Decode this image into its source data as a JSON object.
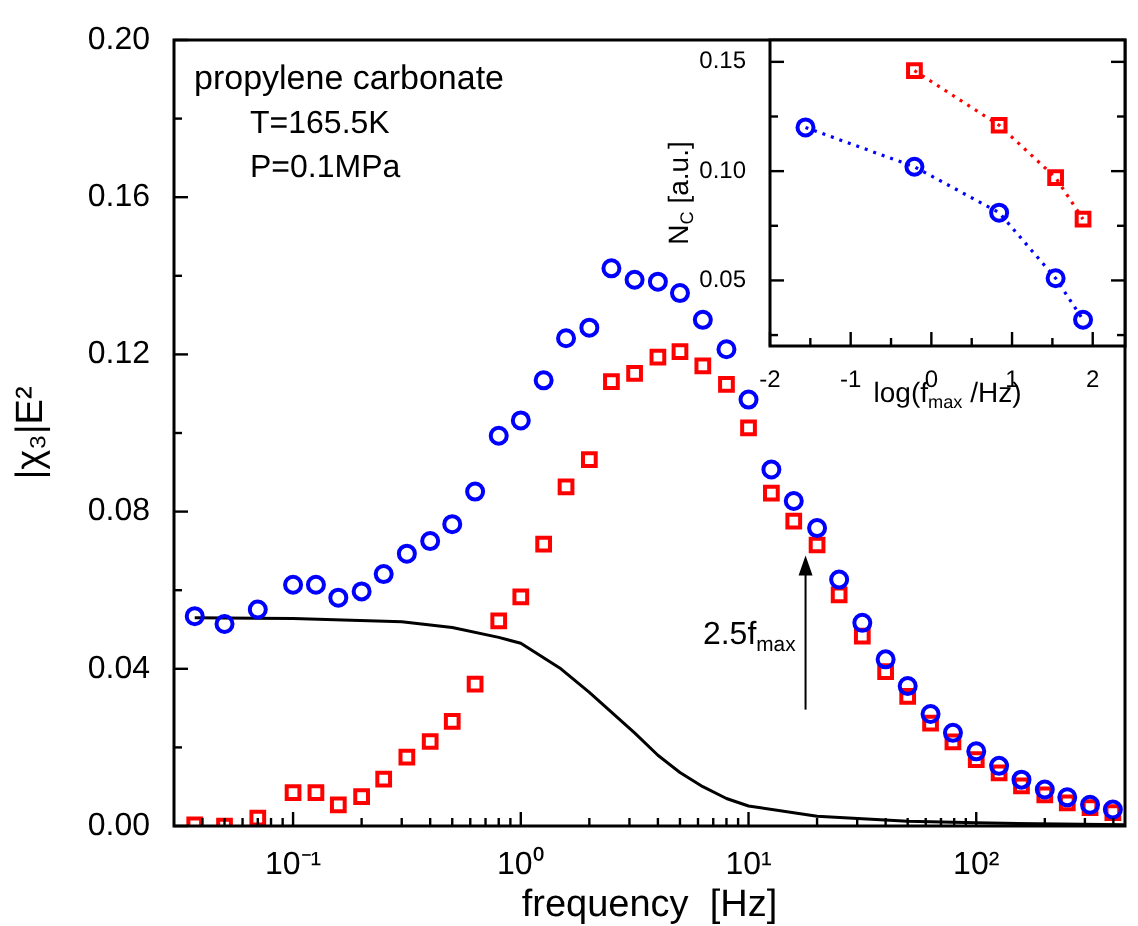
{
  "chart_data": [
    {
      "type": "scatter",
      "xlabel": "frequency  [Hz]",
      "ylabel": "|χ₃|E²",
      "log": "x",
      "grid": false,
      "legend": false,
      "xlim": [
        0.03,
        450
      ],
      "ylim": [
        0,
        0.2
      ],
      "xticks": [
        {
          "value": 0.04,
          "label": null
        },
        {
          "value": 0.05,
          "label": null
        },
        {
          "value": 0.06,
          "label": null
        },
        {
          "value": 0.07,
          "label": null
        },
        {
          "value": 0.08,
          "label": null
        },
        {
          "value": 0.09,
          "label": null
        },
        {
          "value": 0.1,
          "label": "10⁻¹"
        },
        {
          "value": 0.2,
          "label": null
        },
        {
          "value": 0.3,
          "label": null
        },
        {
          "value": 0.4,
          "label": null
        },
        {
          "value": 0.5,
          "label": null
        },
        {
          "value": 0.6,
          "label": null
        },
        {
          "value": 0.7,
          "label": null
        },
        {
          "value": 0.8,
          "label": null
        },
        {
          "value": 0.9,
          "label": null
        },
        {
          "value": 1,
          "label": "10⁰"
        },
        {
          "value": 2,
          "label": null
        },
        {
          "value": 3,
          "label": null
        },
        {
          "value": 4,
          "label": null
        },
        {
          "value": 5,
          "label": null
        },
        {
          "value": 6,
          "label": null
        },
        {
          "value": 7,
          "label": null
        },
        {
          "value": 8,
          "label": null
        },
        {
          "value": 9,
          "label": null
        },
        {
          "value": 10,
          "label": "10¹"
        },
        {
          "value": 20,
          "label": null
        },
        {
          "value": 30,
          "label": null
        },
        {
          "value": 40,
          "label": null
        },
        {
          "value": 50,
          "label": null
        },
        {
          "value": 60,
          "label": null
        },
        {
          "value": 70,
          "label": null
        },
        {
          "value": 80,
          "label": null
        },
        {
          "value": 90,
          "label": null
        },
        {
          "value": 100,
          "label": "10²"
        },
        {
          "value": 200,
          "label": null
        },
        {
          "value": 300,
          "label": null
        },
        {
          "value": 400,
          "label": null
        }
      ],
      "yticks": [
        {
          "value": 0,
          "label": "0.00"
        },
        {
          "value": 0.02,
          "label": null
        },
        {
          "value": 0.04,
          "label": "0.04"
        },
        {
          "value": 0.06,
          "label": null
        },
        {
          "value": 0.08,
          "label": "0.08"
        },
        {
          "value": 0.1,
          "label": null
        },
        {
          "value": 0.12,
          "label": "0.12"
        },
        {
          "value": 0.14,
          "label": null
        },
        {
          "value": 0.16,
          "label": "0.16"
        },
        {
          "value": 0.18,
          "label": null
        },
        {
          "value": 0.2,
          "label": "0.20"
        }
      ],
      "series": [
        {
          "type": "scatter",
          "marker": "circle",
          "color": "#0000ff",
          "x": [
            0.037,
            0.05,
            0.07,
            0.1,
            0.126,
            0.158,
            0.2,
            0.25,
            0.316,
            0.4,
            0.5,
            0.63,
            0.8,
            1,
            1.26,
            1.58,
            2,
            2.5,
            3.16,
            4,
            5,
            6.3,
            8,
            10,
            12.6,
            15.8,
            20,
            25,
            31.6,
            40,
            50,
            63,
            79,
            100,
            126,
            158,
            200,
            251,
            316,
            398
          ],
          "values": [
            0.0534,
            0.0514,
            0.0551,
            0.0614,
            0.0614,
            0.0581,
            0.0597,
            0.0641,
            0.0693,
            0.0725,
            0.0768,
            0.0851,
            0.0993,
            0.1032,
            0.1134,
            0.1241,
            0.1268,
            0.1419,
            0.139,
            0.1385,
            0.1356,
            0.1288,
            0.1213,
            0.1085,
            0.0907,
            0.0827,
            0.0758,
            0.0627,
            0.0517,
            0.0424,
            0.0356,
            0.0285,
            0.0237,
            0.019,
            0.0153,
            0.0118,
            0.0093,
            0.0073,
            0.0054,
            0.0042
          ]
        },
        {
          "type": "scatter",
          "marker": "square",
          "color": "#ff0000",
          "x": [
            0.037,
            0.05,
            0.07,
            0.1,
            0.126,
            0.158,
            0.2,
            0.25,
            0.316,
            0.4,
            0.5,
            0.63,
            0.8,
            1,
            1.26,
            1.58,
            2,
            2.5,
            3.16,
            4,
            5,
            6.3,
            8,
            10,
            12.6,
            15.8,
            20,
            25,
            31.6,
            40,
            50,
            63,
            79,
            100,
            126,
            158,
            200,
            251,
            316,
            398
          ],
          "values": [
            0.0003,
            0,
            0.002,
            0.0085,
            0.0085,
            0.0054,
            0.0075,
            0.0119,
            0.0175,
            0.0215,
            0.0266,
            0.0361,
            0.0522,
            0.0583,
            0.0717,
            0.0863,
            0.0932,
            0.1131,
            0.1152,
            0.1193,
            0.1207,
            0.1171,
            0.1124,
            0.1013,
            0.0847,
            0.0776,
            0.0715,
            0.0588,
            0.0483,
            0.0393,
            0.033,
            0.0262,
            0.0214,
            0.0169,
            0.0135,
            0.0102,
            0.0079,
            0.0059,
            0.0047,
            0.0034
          ]
        },
        {
          "type": "line",
          "marker": "none",
          "line_style": "solid",
          "color": "#000000",
          "x": [
            0.037,
            0.1,
            0.3,
            0.5,
            0.8,
            1,
            1.5,
            2,
            2.5,
            3.16,
            4,
            5,
            6.3,
            8,
            10,
            20,
            50,
            100,
            450
          ],
          "values": [
            0.053,
            0.0528,
            0.052,
            0.0505,
            0.048,
            0.0465,
            0.04,
            0.034,
            0.029,
            0.0237,
            0.018,
            0.0136,
            0.01,
            0.007,
            0.0051,
            0.0025,
            0.0012,
            0.0008,
            0.0003
          ]
        }
      ],
      "annotations": [
        "propylene carbonate",
        "T=165.5K",
        "P=0.1MPa",
        {
          "text": "2.5f$_{max}$",
          "x": 17.8,
          "y": 0.0688
        }
      ]
    },
    {
      "type": "line",
      "xlabel": "log(f$_{max}$ /Hz)",
      "ylabel": "N$_{C}$ [a.u.]",
      "grid": false,
      "legend": false,
      "xlim": [
        -2,
        2.4
      ],
      "ylim": [
        0.02,
        0.16
      ],
      "xticks": [
        -2,
        {
          "value": -1.5,
          "label": null
        },
        -1,
        {
          "value": -0.5,
          "label": null
        },
        0,
        {
          "value": 0.5,
          "label": null
        },
        1,
        {
          "value": 1.5,
          "label": null
        },
        2
      ],
      "yticks": [
        {
          "value": 0.025,
          "label": null
        },
        {
          "value": 0.05,
          "label": "0.05"
        },
        {
          "value": 0.075,
          "label": null
        },
        {
          "value": 0.1,
          "label": "0.10"
        },
        {
          "value": 0.125,
          "label": null
        },
        {
          "value": 0.15,
          "label": "0.15"
        }
      ],
      "series": [
        {
          "marker": "circle",
          "line_style": "dotted",
          "color": "#0000ff",
          "x": [
            -1.56,
            -0.21,
            0.84,
            1.54,
            1.88
          ],
          "values": [
            0.12,
            0.102,
            0.081,
            0.051,
            0.032
          ]
        },
        {
          "marker": "square",
          "line_style": "dotted",
          "color": "#ff0000",
          "x": [
            -0.21,
            0.84,
            1.54,
            1.88
          ],
          "values": [
            0.146,
            0.121,
            0.097,
            0.078
          ]
        }
      ]
    }
  ]
}
